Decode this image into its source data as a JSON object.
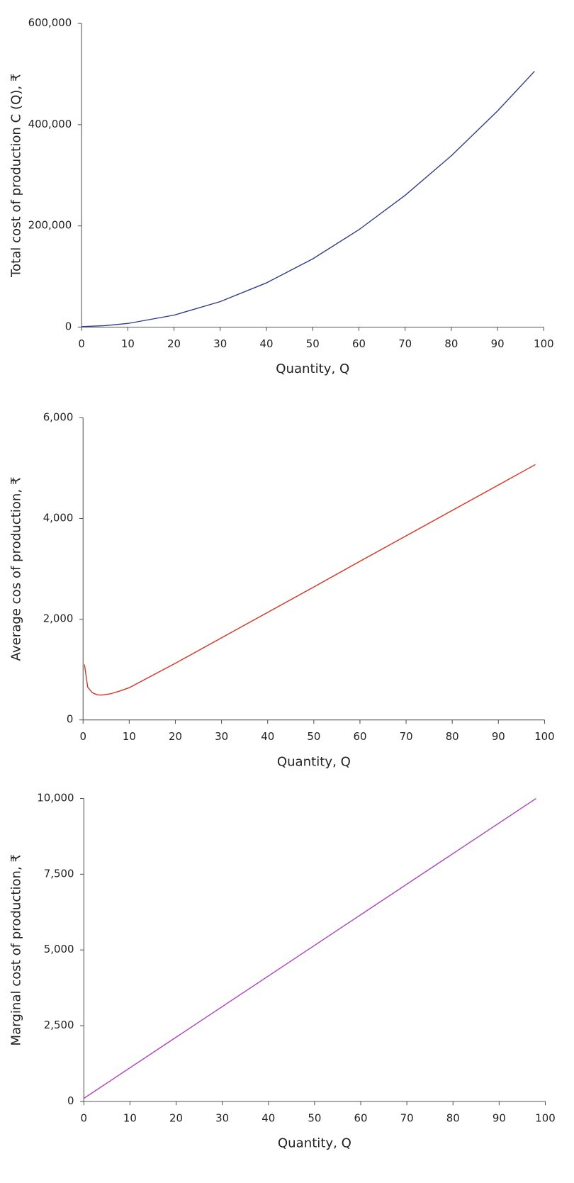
{
  "chart_data": [
    {
      "type": "line",
      "y_label": "Total cost of production C (Q), ₹",
      "x_label": "Quantity, Q",
      "x": [
        0,
        5,
        10,
        20,
        30,
        40,
        50,
        60,
        70,
        80,
        90,
        98
      ],
      "values": [
        1000,
        2788,
        7150,
        23600,
        50350,
        87400,
        134750,
        192400,
        260350,
        338600,
        427150,
        505400
      ],
      "color": "#2e3a8c",
      "xlim": [
        0,
        100
      ],
      "xticks": [
        0,
        10,
        20,
        30,
        40,
        50,
        60,
        70,
        80,
        90,
        100
      ],
      "ylim": [
        0,
        600000
      ],
      "yticks": [
        0,
        {
          "value": 200000,
          "label": "200,000"
        },
        {
          "value": 400000,
          "label": "400,000"
        },
        {
          "value": 600000,
          "label": "600,000"
        }
      ]
    },
    {
      "type": "line",
      "y_label": "Average cos of production, ₹",
      "x_label": "Quantity, Q",
      "x": [
        0.3,
        1,
        2,
        3,
        4,
        5,
        6,
        8,
        10,
        20,
        30,
        40,
        50,
        60,
        70,
        80,
        90,
        98
      ],
      "values": [
        1100,
        650,
        540,
        500,
        495,
        505,
        520,
        575,
        640,
        1125,
        1630,
        2135,
        2640,
        3150,
        3655,
        4160,
        4665,
        5070
      ],
      "color": "#e0301e",
      "xlim": [
        0,
        100
      ],
      "xticks": [
        0,
        10,
        20,
        30,
        40,
        50,
        60,
        70,
        80,
        90,
        100
      ],
      "ylim": [
        0,
        6000
      ],
      "yticks": [
        0,
        {
          "value": 2000,
          "label": "2,000"
        },
        {
          "value": 4000,
          "label": "4,000"
        },
        {
          "value": 6000,
          "label": "6,000"
        }
      ]
    },
    {
      "type": "line",
      "y_label": "Marginal cost of production, ₹",
      "x_label": "Quantity, Q",
      "x": [
        0,
        98
      ],
      "values": [
        100,
        10000
      ],
      "color": "#b040c0",
      "xlim": [
        0,
        100
      ],
      "xticks": [
        0,
        10,
        20,
        30,
        40,
        50,
        60,
        70,
        80,
        90,
        100
      ],
      "ylim": [
        0,
        10000
      ],
      "yticks": [
        0,
        {
          "value": 2500,
          "label": "2,500"
        },
        {
          "value": 5000,
          "label": "5,000"
        },
        {
          "value": 7500,
          "label": "7,500"
        },
        {
          "value": 10000,
          "label": "10,000"
        }
      ]
    }
  ]
}
